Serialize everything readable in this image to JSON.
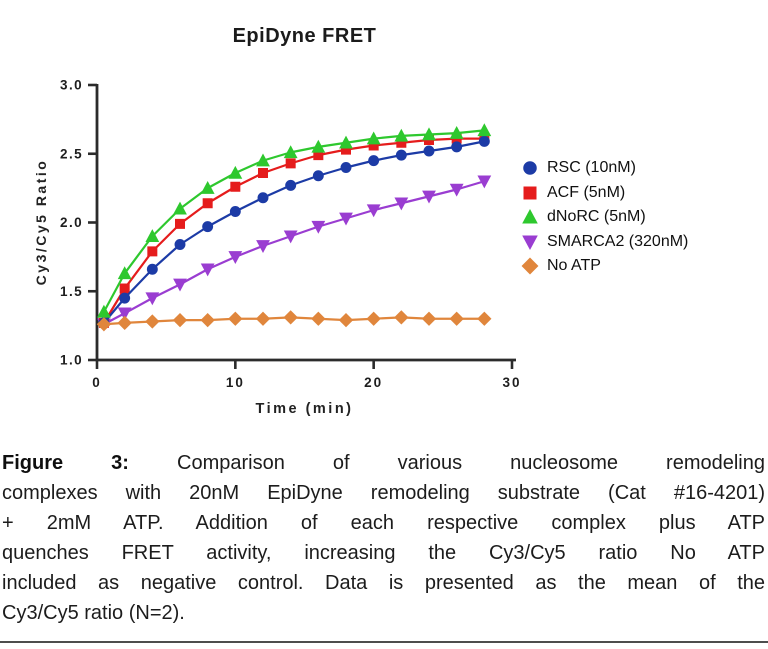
{
  "chart_data": {
    "type": "line",
    "title": "EpiDyne FRET",
    "xlabel": "Time (min)",
    "ylabel": "Cy3/Cy5 Ratio",
    "xlim": [
      0,
      30
    ],
    "ylim": [
      1.0,
      3.0
    ],
    "xticks": [
      "0",
      "10",
      "20",
      "30"
    ],
    "yticks": [
      "1.0",
      "1.5",
      "2.0",
      "2.5",
      "3.0"
    ],
    "grid": false,
    "legend_position": "right",
    "axis_color": "#2b2b2b",
    "x": [
      0.5,
      2,
      4,
      6,
      8,
      10,
      12,
      14,
      16,
      18,
      20,
      22,
      24,
      26,
      28
    ],
    "series": [
      {
        "name": "RSC (10nM)",
        "marker": "circle",
        "color": "#1c3ba6",
        "values": [
          1.27,
          1.45,
          1.66,
          1.84,
          1.97,
          2.08,
          2.18,
          2.27,
          2.34,
          2.4,
          2.45,
          2.49,
          2.52,
          2.55,
          2.59
        ]
      },
      {
        "name": "ACF (5nM)",
        "marker": "square",
        "color": "#e51c1c",
        "values": [
          1.27,
          1.52,
          1.79,
          1.99,
          2.14,
          2.26,
          2.36,
          2.43,
          2.49,
          2.53,
          2.56,
          2.58,
          2.6,
          2.61,
          2.61
        ]
      },
      {
        "name": "dNoRC (5nM)",
        "marker": "triangle-up",
        "color": "#2ec82e",
        "values": [
          1.35,
          1.63,
          1.9,
          2.1,
          2.25,
          2.36,
          2.45,
          2.51,
          2.55,
          2.58,
          2.61,
          2.63,
          2.64,
          2.65,
          2.67
        ]
      },
      {
        "name": "SMARCA2 (320nM)",
        "marker": "triangle-down",
        "color": "#9a3dd1",
        "values": [
          1.26,
          1.34,
          1.45,
          1.55,
          1.66,
          1.75,
          1.83,
          1.9,
          1.97,
          2.03,
          2.09,
          2.14,
          2.19,
          2.24,
          2.3
        ]
      },
      {
        "name": "No ATP",
        "marker": "diamond",
        "color": "#e0863c",
        "values": [
          1.26,
          1.27,
          1.28,
          1.29,
          1.29,
          1.3,
          1.3,
          1.31,
          1.3,
          1.29,
          1.3,
          1.31,
          1.3,
          1.3,
          1.3
        ]
      }
    ]
  },
  "caption": {
    "lead": "Figure 3:",
    "lines": [
      "Comparison of various nucleosome remodeling",
      "complexes with 20nM EpiDyne remodeling substrate (Cat #16-4201)",
      "+ 2mM ATP. Addition of each respective complex plus ATP",
      "quenches FRET activity, increasing the Cy3/Cy5 ratio No ATP",
      "included as negative control. Data is presented as the mean of the",
      "Cy3/Cy5 ratio (N=2)."
    ]
  }
}
